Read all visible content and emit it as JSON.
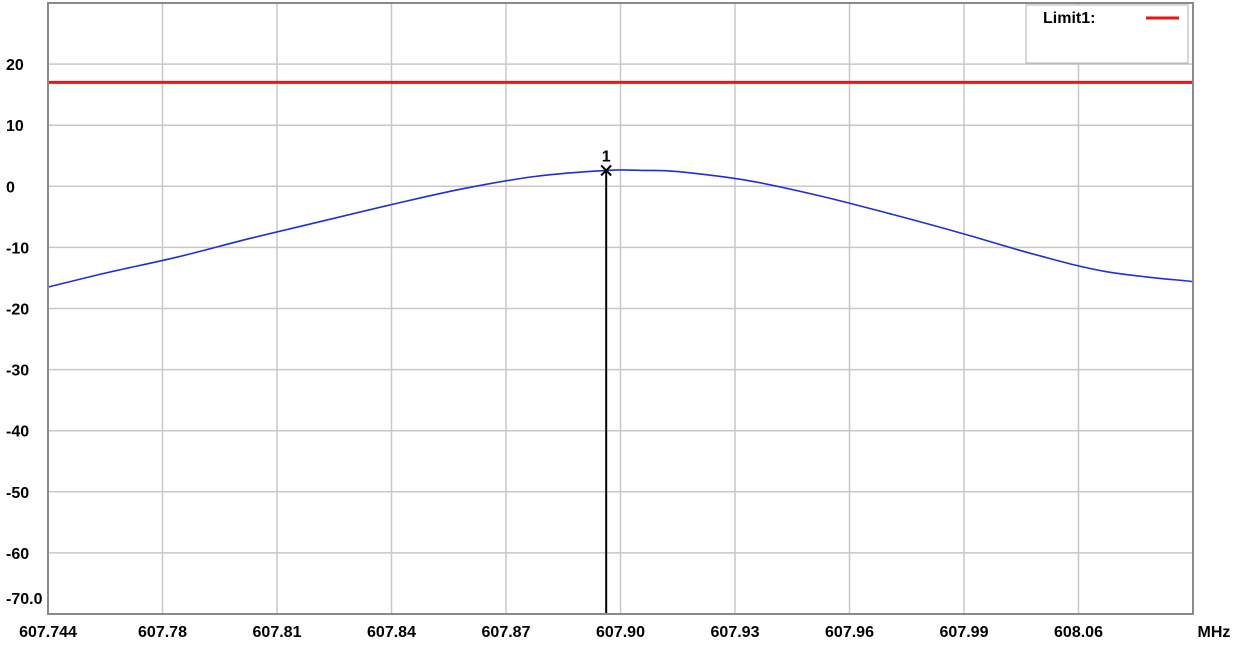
{
  "chart_data": {
    "type": "line",
    "xlabel": "",
    "x_unit": "MHz",
    "ylabel": "",
    "x_range": [
      607.744,
      608.064
    ],
    "ylim": [
      -70,
      30
    ],
    "y_ticks": [
      20,
      10,
      0,
      -10,
      -20,
      -30,
      -40,
      -50,
      -60,
      -70
    ],
    "y_tick_labels": [
      "20",
      "10",
      "0",
      "-10",
      "-20",
      "-30",
      "-40",
      "-50",
      "-60",
      "-70.0"
    ],
    "x_tick_labels": [
      "607.744",
      "607.78",
      "607.81",
      "607.84",
      "607.87",
      "607.90",
      "607.93",
      "607.96",
      "607.99",
      "608.06"
    ],
    "grid": true,
    "legend": {
      "placement": "top-right",
      "entries": [
        {
          "label": "Limit1:",
          "color": "#e8141c"
        }
      ]
    },
    "limit_line": {
      "y": 17
    },
    "series": [
      {
        "color": "#1f2fd6",
        "x": [
          607.744,
          607.76,
          607.78,
          607.8,
          607.82,
          607.84,
          607.86,
          607.88,
          607.9,
          607.91,
          607.92,
          607.94,
          607.96,
          607.98,
          608.0,
          608.02,
          608.04,
          608.064
        ],
        "y": [
          -16.5,
          -14.2,
          -11.6,
          -8.6,
          -5.8,
          -3.0,
          -0.4,
          1.6,
          2.6,
          2.6,
          2.4,
          0.9,
          -1.6,
          -4.6,
          -7.8,
          -11.2,
          -14.0,
          -15.6
        ]
      }
    ],
    "marker": {
      "label": "1",
      "x": 607.9,
      "y": 2.6
    }
  }
}
